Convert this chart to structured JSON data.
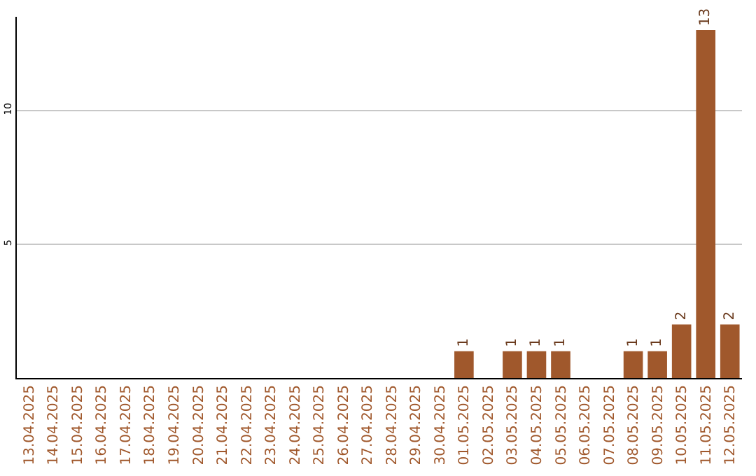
{
  "chart_data": {
    "type": "bar",
    "categories": [
      "13.04.2025",
      "14.04.2025",
      "15.04.2025",
      "16.04.2025",
      "17.04.2025",
      "18.04.2025",
      "19.04.2025",
      "20.04.2025",
      "21.04.2025",
      "22.04.2025",
      "23.04.2025",
      "24.04.2025",
      "25.04.2025",
      "26.04.2025",
      "27.04.2025",
      "28.04.2025",
      "29.04.2025",
      "30.04.2025",
      "01.05.2025",
      "02.05.2025",
      "03.05.2025",
      "04.05.2025",
      "05.05.2025",
      "06.05.2025",
      "07.05.2025",
      "08.05.2025",
      "09.05.2025",
      "10.05.2025",
      "11.05.2025",
      "12.05.2025"
    ],
    "values": [
      0,
      0,
      0,
      0,
      0,
      0,
      0,
      0,
      0,
      0,
      0,
      0,
      0,
      0,
      0,
      0,
      0,
      0,
      1,
      0,
      1,
      1,
      1,
      0,
      0,
      1,
      1,
      2,
      13,
      2
    ],
    "value_labels": [
      null,
      null,
      null,
      null,
      null,
      null,
      null,
      null,
      null,
      null,
      null,
      null,
      null,
      null,
      null,
      null,
      null,
      null,
      "1",
      null,
      "1",
      "1",
      "1",
      null,
      null,
      "1",
      "1",
      "2",
      "13",
      "2"
    ],
    "color": "#a0582c",
    "ylim": [
      0,
      13.5
    ],
    "yticks": [
      5,
      10
    ],
    "grid": "y",
    "legend": false
  }
}
